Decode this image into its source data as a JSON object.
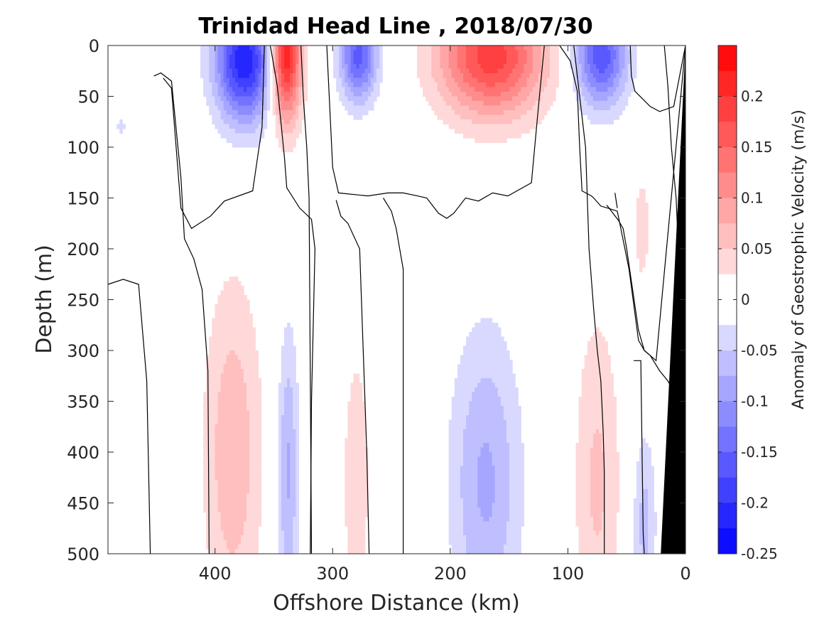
{
  "chart_data": {
    "type": "heatmap",
    "title": "Trinidad Head Line , 2018/07/30",
    "xlabel": "Offshore Distance (km)",
    "ylabel": "Depth (m)",
    "xlim": [
      491,
      0
    ],
    "ylim": [
      0,
      500
    ],
    "x_reversed": true,
    "y_reversed": true,
    "xticks": [
      400,
      300,
      200,
      100,
      0
    ],
    "yticks": [
      0,
      50,
      100,
      150,
      200,
      250,
      300,
      350,
      400,
      450,
      500
    ],
    "colorbar": {
      "label": "Anomaly of Geostrophic Velocity (m/s)",
      "range": [
        -0.25,
        0.25
      ],
      "step": 0.025,
      "ticks": [
        0.2,
        0.15,
        0.1,
        0.05,
        0,
        -0.05,
        -0.1,
        -0.15,
        -0.2,
        -0.25
      ],
      "tick_labels": [
        "0.2",
        "0.15",
        "0.1",
        "0.05",
        "0",
        "-0.05",
        "-0.1",
        "-0.15",
        "-0.2",
        "-0.25"
      ],
      "colormap": "blue-white-red",
      "color_neg": "#0000ff",
      "color_pos": "#ff0000"
    },
    "features": [
      {
        "name": "eddy 1",
        "x": 375,
        "depth": 15,
        "w": 25,
        "h": 60,
        "amp": -0.22
      },
      {
        "name": "eddy 2",
        "x": 340,
        "depth": 10,
        "w": 13,
        "h": 65,
        "amp": 0.24
      },
      {
        "name": "eddy 3",
        "x": 278,
        "depth": 10,
        "w": 16,
        "h": 45,
        "amp": -0.16
      },
      {
        "name": "eddy 4",
        "x": 165,
        "depth": 10,
        "w": 45,
        "h": 60,
        "amp": 0.19
      },
      {
        "name": "eddy 5",
        "x": 72,
        "depth": 10,
        "w": 22,
        "h": 50,
        "amp": -0.17
      },
      {
        "name": "eddy 6",
        "x": 480,
        "depth": 80,
        "w": 6,
        "h": 20,
        "amp": -0.03
      },
      {
        "name": "deep 1",
        "x": 385,
        "depth": 400,
        "w": 25,
        "h": 170,
        "amp": 0.07
      },
      {
        "name": "deep 2",
        "x": 338,
        "depth": 420,
        "w": 9,
        "h": 140,
        "amp": -0.08
      },
      {
        "name": "deep 3",
        "x": 280,
        "depth": 430,
        "w": 12,
        "h": 140,
        "amp": 0.045
      },
      {
        "name": "deep 4",
        "x": 170,
        "depth": 430,
        "w": 30,
        "h": 150,
        "amp": -0.08
      },
      {
        "name": "deep 5",
        "x": 75,
        "depth": 430,
        "w": 20,
        "h": 170,
        "amp": 0.055
      },
      {
        "name": "deep 6",
        "x": 35,
        "depth": 470,
        "w": 10,
        "h": 90,
        "amp": -0.06
      },
      {
        "name": "deep 7",
        "x": 37,
        "depth": 180,
        "w": 7,
        "h": 60,
        "amp": 0.04
      }
    ],
    "zero_contours": [
      [
        [
          491,
          235
        ],
        [
          478,
          230
        ],
        [
          465,
          235
        ],
        [
          458,
          330
        ],
        [
          455,
          500
        ]
      ],
      [
        [
          452,
          30
        ],
        [
          446,
          27
        ],
        [
          437,
          35
        ],
        [
          429,
          130
        ],
        [
          426,
          190
        ],
        [
          418,
          210
        ],
        [
          411,
          240
        ],
        [
          406,
          320
        ],
        [
          405,
          500
        ]
      ],
      [
        [
          444,
          32
        ],
        [
          437,
          42
        ],
        [
          429,
          160
        ],
        [
          420,
          180
        ],
        [
          404,
          168
        ],
        [
          392,
          153
        ],
        [
          368,
          143
        ],
        [
          360,
          80
        ],
        [
          358,
          0
        ]
      ],
      [
        [
          353,
          0
        ],
        [
          347,
          40
        ],
        [
          341,
          110
        ],
        [
          339,
          140
        ],
        [
          328,
          160
        ],
        [
          318,
          171
        ],
        [
          315,
          200
        ],
        [
          318,
          350
        ],
        [
          319,
          500
        ]
      ],
      [
        [
          327,
          0
        ],
        [
          325,
          50
        ],
        [
          322,
          100
        ],
        [
          320,
          150
        ],
        [
          318,
          500
        ]
      ],
      [
        [
          305,
          0
        ],
        [
          300,
          120
        ],
        [
          295,
          145
        ],
        [
          270,
          148
        ],
        [
          253,
          145
        ],
        [
          240,
          145
        ],
        [
          228,
          148
        ],
        [
          220,
          150
        ],
        [
          210,
          165
        ],
        [
          203,
          170
        ],
        [
          197,
          165
        ],
        [
          187,
          150
        ],
        [
          176,
          153
        ],
        [
          164,
          145
        ],
        [
          151,
          148
        ],
        [
          131,
          135
        ],
        [
          125,
          60
        ],
        [
          120,
          0
        ]
      ],
      [
        [
          297,
          152
        ],
        [
          293,
          168
        ],
        [
          287,
          175
        ],
        [
          277,
          200
        ],
        [
          271,
          400
        ],
        [
          269,
          500
        ]
      ],
      [
        [
          257,
          150
        ],
        [
          250,
          163
        ],
        [
          246,
          180
        ],
        [
          240,
          220
        ],
        [
          240,
          500
        ]
      ],
      [
        [
          107,
          0
        ],
        [
          98,
          15
        ],
        [
          92,
          45
        ],
        [
          90,
          100
        ],
        [
          88,
          143
        ],
        [
          80,
          148
        ],
        [
          78,
          150
        ],
        [
          72,
          158
        ],
        [
          66,
          160
        ],
        [
          58,
          163
        ],
        [
          48,
          220
        ],
        [
          40,
          290
        ],
        [
          35,
          300
        ],
        [
          30,
          305
        ],
        [
          25,
          310
        ],
        [
          0,
          0
        ]
      ],
      [
        [
          67,
          157
        ],
        [
          57,
          172
        ],
        [
          53,
          180
        ],
        [
          50,
          200
        ],
        [
          40,
          280
        ],
        [
          35,
          300
        ],
        [
          30,
          305
        ],
        [
          22,
          320
        ],
        [
          15,
          330
        ],
        [
          10,
          340
        ]
      ],
      [
        [
          60,
          145
        ],
        [
          58,
          160
        ]
      ],
      [
        [
          47,
          0
        ],
        [
          46,
          30
        ],
        [
          43,
          45
        ],
        [
          30,
          60
        ],
        [
          22,
          65
        ],
        [
          10,
          60
        ],
        [
          0,
          0
        ]
      ],
      [
        [
          18,
          0
        ],
        [
          15,
          40
        ],
        [
          12,
          100
        ],
        [
          8,
          150
        ],
        [
          5,
          230
        ],
        [
          0,
          250
        ]
      ],
      [
        [
          44,
          310
        ],
        [
          38,
          310
        ],
        [
          36,
          480
        ],
        [
          35,
          500
        ]
      ],
      [
        [
          95,
          0
        ],
        [
          85,
          100
        ],
        [
          82,
          200
        ],
        [
          78,
          260
        ],
        [
          75,
          300
        ],
        [
          72,
          330
        ],
        [
          70,
          380
        ],
        [
          69,
          420
        ],
        [
          69,
          500
        ]
      ]
    ],
    "bathymetry": [
      [
        0,
        0
      ],
      [
        21,
        500
      ],
      [
        0,
        500
      ]
    ],
    "bathymetry_color": "#000000"
  }
}
